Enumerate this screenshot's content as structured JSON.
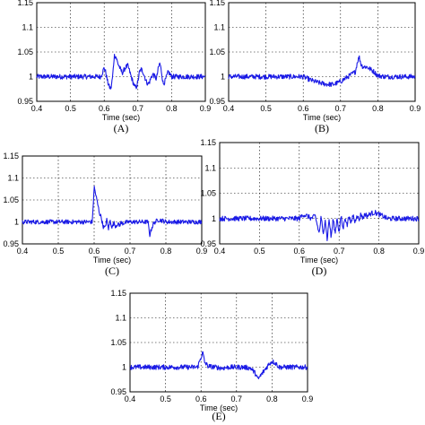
{
  "chart_data": [
    {
      "type": "line",
      "panel_label": "(A)",
      "xlabel": "Time (sec)",
      "ylabel": "",
      "xlim": [
        0.4,
        0.9
      ],
      "ylim": [
        0.95,
        1.15
      ],
      "xticks": [
        "0.4",
        "0.5",
        "0.6",
        "0.7",
        "0.8",
        "0.9"
      ],
      "yticks": [
        "0.95",
        "1",
        "1.05",
        "1.1",
        "1.15"
      ],
      "grid": true,
      "series": [
        {
          "x": [
            0.4,
            0.59,
            0.6,
            0.605,
            0.61,
            0.615,
            0.62,
            0.625,
            0.63,
            0.635,
            0.64,
            0.645,
            0.65,
            0.655,
            0.66,
            0.665,
            0.67,
            0.675,
            0.68,
            0.685,
            0.69,
            0.695,
            0.7,
            0.705,
            0.71,
            0.715,
            0.72,
            0.725,
            0.73,
            0.735,
            0.74,
            0.745,
            0.75,
            0.755,
            0.76,
            0.765,
            0.77,
            0.775,
            0.78,
            0.785,
            0.79,
            0.8,
            0.9
          ],
          "y": [
            1.0,
            1.0,
            1.018,
            1.008,
            0.99,
            0.98,
            0.975,
            1.0,
            1.043,
            1.04,
            1.028,
            1.02,
            1.012,
            1.008,
            1.015,
            1.02,
            1.022,
            1.012,
            1.0,
            0.99,
            0.98,
            0.978,
            0.99,
            1.01,
            1.015,
            1.01,
            1.0,
            0.99,
            0.985,
            0.99,
            1.0,
            1.005,
            1.0,
            0.995,
            1.015,
            1.028,
            1.01,
            0.985,
            0.99,
            1.0,
            1.01,
            1.0,
            1.0
          ]
        }
      ]
    },
    {
      "type": "line",
      "panel_label": "(B)",
      "xlabel": "Time (sec)",
      "ylabel": "",
      "xlim": [
        0.4,
        0.9
      ],
      "ylim": [
        0.95,
        1.15
      ],
      "xticks": [
        "0.4",
        "0.5",
        "0.6",
        "0.7",
        "0.8",
        "0.9"
      ],
      "yticks": [
        "0.95",
        "1",
        "1.05",
        "1.1",
        "1.15"
      ],
      "grid": true,
      "series": [
        {
          "x": [
            0.4,
            0.6,
            0.62,
            0.64,
            0.66,
            0.68,
            0.7,
            0.72,
            0.74,
            0.745,
            0.75,
            0.755,
            0.76,
            0.77,
            0.78,
            0.79,
            0.8,
            0.82,
            0.9
          ],
          "y": [
            1.0,
            1.0,
            0.993,
            0.988,
            0.985,
            0.984,
            0.99,
            1.0,
            1.01,
            1.03,
            1.04,
            1.025,
            1.02,
            1.02,
            1.015,
            1.01,
            1.002,
            1.0,
            1.0
          ]
        }
      ]
    },
    {
      "type": "line",
      "panel_label": "(C)",
      "xlabel": "Time (sec)",
      "ylabel": "",
      "xlim": [
        0.4,
        0.9
      ],
      "ylim": [
        0.95,
        1.15
      ],
      "xticks": [
        "0.4",
        "0.5",
        "0.6",
        "0.7",
        "0.8",
        "0.9"
      ],
      "yticks": [
        "0.95",
        "1",
        "1.05",
        "1.1",
        "1.15"
      ],
      "grid": true,
      "series": [
        {
          "x": [
            0.4,
            0.595,
            0.6,
            0.605,
            0.61,
            0.615,
            0.62,
            0.625,
            0.63,
            0.635,
            0.64,
            0.645,
            0.65,
            0.655,
            0.66,
            0.665,
            0.67,
            0.675,
            0.68,
            0.69,
            0.7,
            0.72,
            0.75,
            0.755,
            0.76,
            0.765,
            0.77,
            0.78,
            0.79,
            0.8,
            0.9
          ],
          "y": [
            1.0,
            1.0,
            1.08,
            1.06,
            1.04,
            1.02,
            1.01,
            0.99,
            0.985,
            1.005,
            0.985,
            1.003,
            0.987,
            0.998,
            0.99,
            0.996,
            0.992,
            0.998,
            0.997,
            0.999,
            1.0,
            1.0,
            1.0,
            0.97,
            0.985,
            0.995,
            1.0,
            1.005,
            1.003,
            1.0,
            1.0
          ]
        }
      ]
    },
    {
      "type": "line",
      "panel_label": "(D)",
      "xlabel": "Time (sec)",
      "ylabel": "",
      "xlim": [
        0.4,
        0.9
      ],
      "ylim": [
        0.95,
        1.15
      ],
      "xticks": [
        "0.4",
        "0.5",
        "0.6",
        "0.7",
        "0.8",
        "0.9"
      ],
      "yticks": [
        "0.95",
        "1",
        "1.05",
        "1.1",
        "1.15"
      ],
      "grid": true,
      "series": [
        {
          "x": [
            0.4,
            0.6,
            0.61,
            0.62,
            0.63,
            0.64,
            0.65,
            0.655,
            0.66,
            0.665,
            0.67,
            0.675,
            0.68,
            0.685,
            0.69,
            0.695,
            0.7,
            0.705,
            0.71,
            0.715,
            0.72,
            0.725,
            0.73,
            0.735,
            0.74,
            0.745,
            0.75,
            0.755,
            0.76,
            0.765,
            0.77,
            0.78,
            0.79,
            0.8,
            0.81,
            0.82,
            0.9
          ],
          "y": [
            1.0,
            1.0,
            1.008,
            1.005,
            1.0,
            1.005,
            0.97,
            1.005,
            0.965,
            1.002,
            0.958,
            1.0,
            0.962,
            1.0,
            0.97,
            1.002,
            0.972,
            1.005,
            0.978,
            1.005,
            0.985,
            1.008,
            0.988,
            1.008,
            0.992,
            1.01,
            0.995,
            1.01,
            1.0,
            1.01,
            1.005,
            1.01,
            1.012,
            1.008,
            1.005,
            1.0,
            1.0
          ]
        }
      ]
    },
    {
      "type": "line",
      "panel_label": "(E)",
      "xlabel": "Time (sec)",
      "ylabel": "",
      "xlim": [
        0.4,
        0.9
      ],
      "ylim": [
        0.95,
        1.15
      ],
      "xticks": [
        "0.4",
        "0.5",
        "0.6",
        "0.7",
        "0.8",
        "0.9"
      ],
      "yticks": [
        "0.95",
        "1",
        "1.05",
        "1.1",
        "1.15"
      ],
      "grid": true,
      "series": [
        {
          "x": [
            0.4,
            0.59,
            0.6,
            0.605,
            0.61,
            0.62,
            0.64,
            0.66,
            0.68,
            0.7,
            0.72,
            0.74,
            0.75,
            0.755,
            0.76,
            0.765,
            0.77,
            0.78,
            0.79,
            0.8,
            0.81,
            0.82,
            0.9
          ],
          "y": [
            1.0,
            1.0,
            1.02,
            1.03,
            1.01,
            1.002,
            1.0,
            0.998,
            1.0,
            1.0,
            1.0,
            0.998,
            0.99,
            0.985,
            0.975,
            0.98,
            0.985,
            0.995,
            1.005,
            1.012,
            1.008,
            1.0,
            1.0
          ]
        }
      ]
    }
  ],
  "colors": {
    "trace": "#1a1ae6",
    "grid": "#000000",
    "frame": "#000000"
  }
}
